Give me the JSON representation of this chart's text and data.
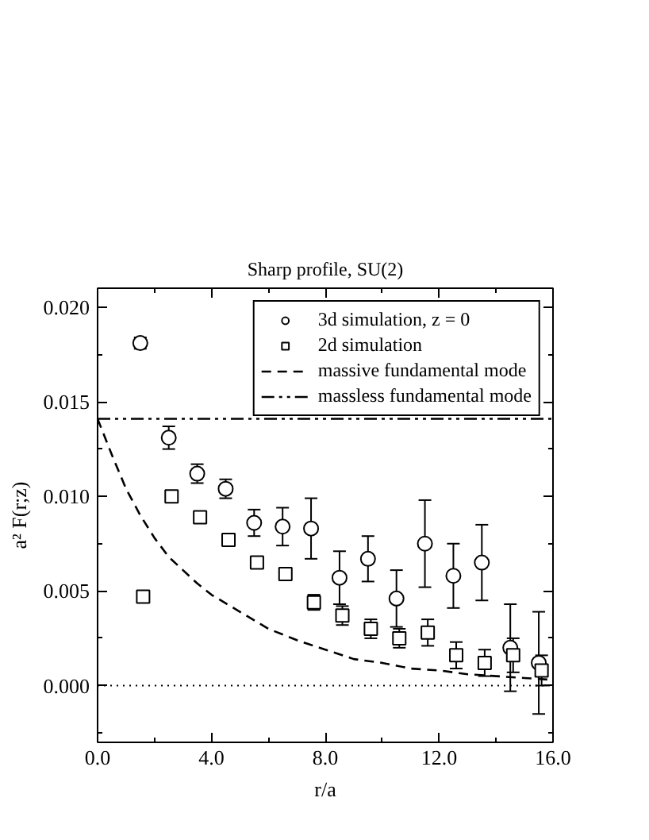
{
  "chart_data": {
    "type": "scatter",
    "title": "Sharp profile, SU(2)",
    "xlabel": "r/a",
    "ylabel": "a² F(r;z)",
    "xlim": [
      0,
      16
    ],
    "ylim": [
      -0.003,
      0.021
    ],
    "xticks": [
      {
        "value": 0,
        "label": "0.0"
      },
      {
        "value": 2,
        "label": null
      },
      {
        "value": 4,
        "label": "4.0"
      },
      {
        "value": 6,
        "label": null
      },
      {
        "value": 8,
        "label": "8.0"
      },
      {
        "value": 10,
        "label": null
      },
      {
        "value": 12,
        "label": "12.0"
      },
      {
        "value": 14,
        "label": null
      },
      {
        "value": 16,
        "label": "16.0"
      }
    ],
    "yticks": [
      {
        "value": -0.0025,
        "label": null
      },
      {
        "value": 0,
        "label": "0.000"
      },
      {
        "value": 0.0025,
        "label": null
      },
      {
        "value": 0.005,
        "label": "0.005"
      },
      {
        "value": 0.0075,
        "label": null
      },
      {
        "value": 0.01,
        "label": "0.010"
      },
      {
        "value": 0.0125,
        "label": null
      },
      {
        "value": 0.015,
        "label": "0.015"
      },
      {
        "value": 0.0175,
        "label": null
      },
      {
        "value": 0.02,
        "label": "0.020"
      }
    ],
    "legend": "top right",
    "series": [
      {
        "name": "3d simulation, z = 0",
        "marker": "circle",
        "color": "#000000",
        "x": [
          1.5,
          2.5,
          3.5,
          4.5,
          5.5,
          6.5,
          7.5,
          8.5,
          9.5,
          10.5,
          11.5,
          12.5,
          13.5,
          14.5,
          15.5
        ],
        "values": [
          0.0181,
          0.0131,
          0.0112,
          0.0104,
          0.0086,
          0.0084,
          0.0083,
          0.0057,
          0.0067,
          0.0046,
          0.0075,
          0.0058,
          0.0065,
          0.002,
          0.0012
        ],
        "errors": [
          0.0003,
          0.0006,
          0.0005,
          0.0005,
          0.0007,
          0.001,
          0.0016,
          0.0014,
          0.0012,
          0.0015,
          0.0023,
          0.0017,
          0.002,
          0.0023,
          0.0027
        ]
      },
      {
        "name": "2d simulation",
        "marker": "square",
        "color": "#000000",
        "x": [
          1.6,
          2.6,
          3.6,
          4.6,
          5.6,
          6.6,
          7.6,
          8.6,
          9.6,
          10.6,
          11.6,
          12.6,
          13.6,
          14.6,
          15.6
        ],
        "values": [
          0.0047,
          0.01,
          0.0089,
          0.0077,
          0.0065,
          0.0059,
          0.0044,
          0.0037,
          0.003,
          0.0025,
          0.0028,
          0.0016,
          0.0012,
          0.0016,
          0.0008
        ],
        "errors": [
          null,
          null,
          null,
          null,
          0.0003,
          0.0003,
          0.0004,
          0.0005,
          0.0005,
          0.0005,
          0.0007,
          0.0007,
          0.0007,
          0.0009,
          0.0008
        ]
      },
      {
        "name": "massive fundamental mode",
        "type": "line",
        "line_style": "dashed",
        "color": "#000000",
        "x": [
          0,
          0.5,
          1,
          1.5,
          2,
          2.5,
          3,
          3.5,
          4,
          5,
          6,
          7,
          8,
          9,
          10,
          11,
          12,
          13,
          14,
          15,
          16
        ],
        "values": [
          0.0141,
          0.0122,
          0.0104,
          0.009,
          0.0078,
          0.0068,
          0.0061,
          0.0054,
          0.0048,
          0.0039,
          0.003,
          0.0024,
          0.0019,
          0.0014,
          0.0012,
          0.0009,
          0.0008,
          0.0006,
          0.0005,
          0.0004,
          0.0003
        ]
      },
      {
        "name": "massless fundamental mode",
        "type": "line",
        "line_style": "dashdotdot",
        "color": "#000000",
        "x": [
          0,
          16
        ],
        "values": [
          0.0141,
          0.0141
        ]
      }
    ],
    "ref_lines": [
      {
        "axis": "y",
        "value": 0,
        "line_style": "dotted",
        "color": "#000000"
      }
    ]
  }
}
